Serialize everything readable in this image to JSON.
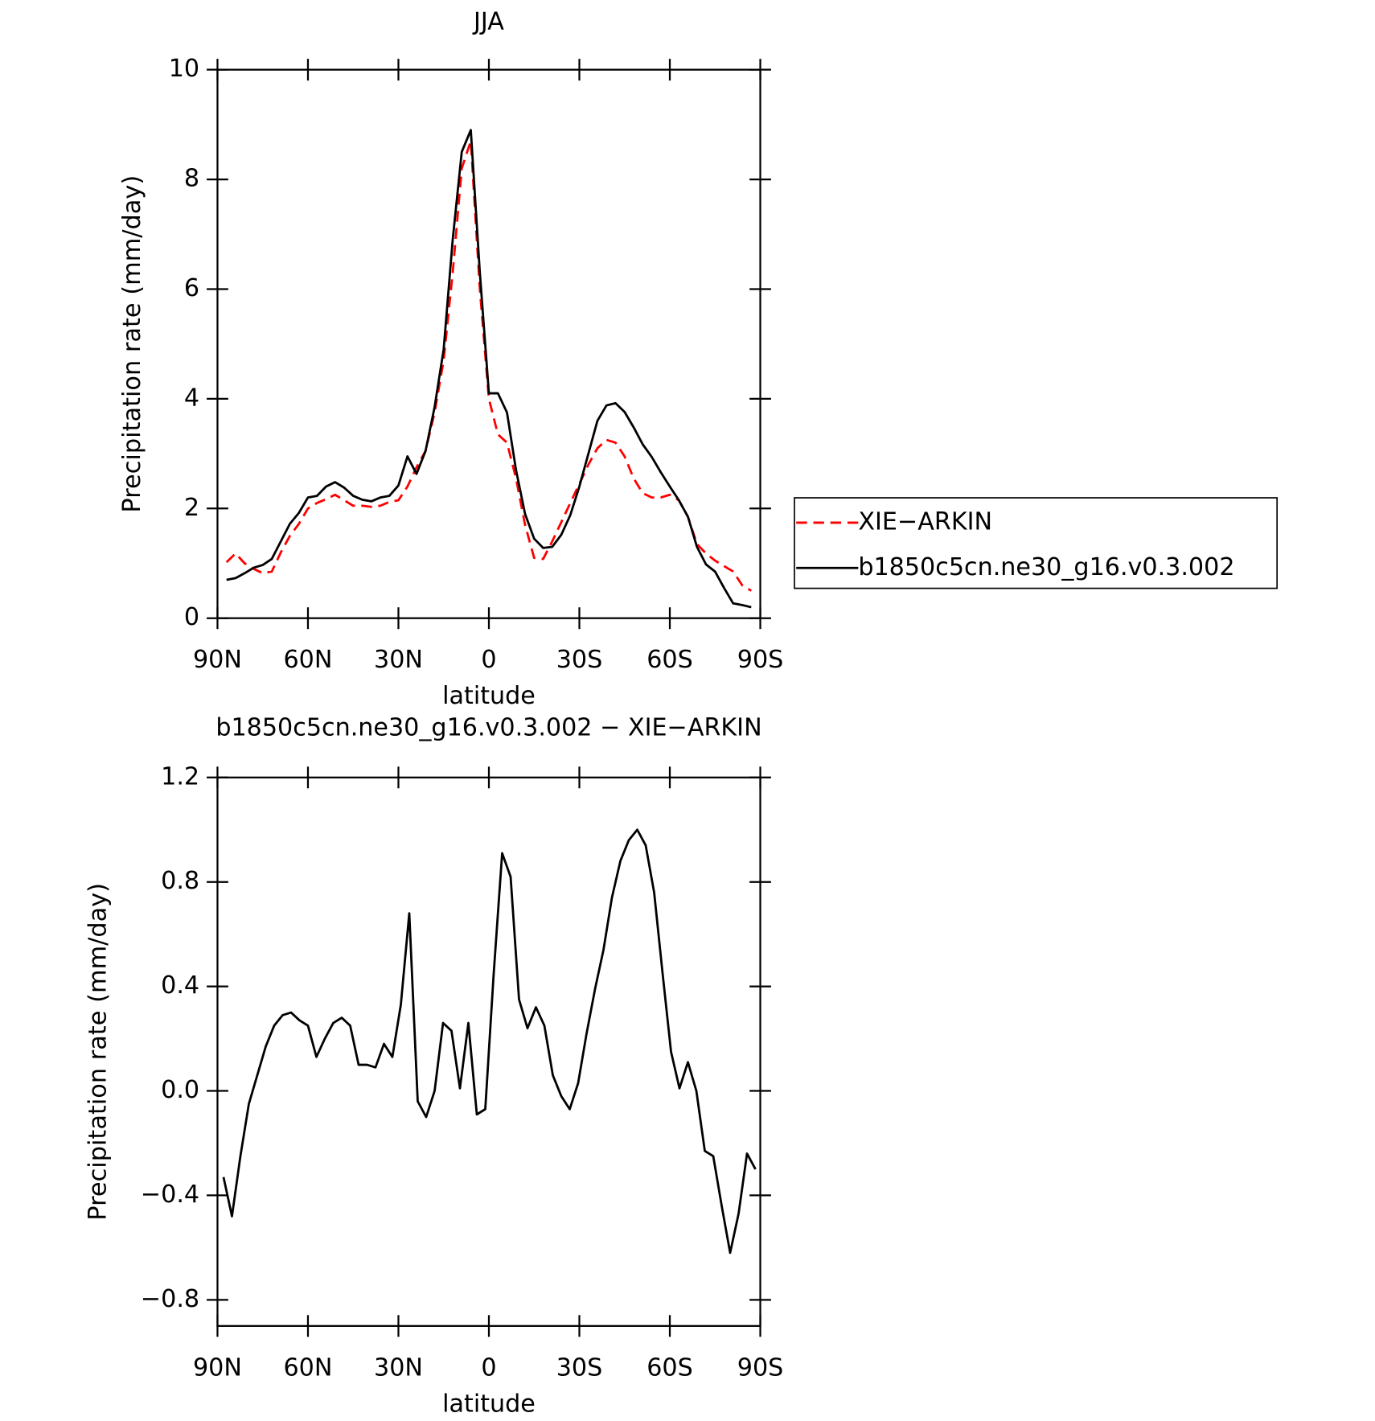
{
  "chart_data": [
    {
      "type": "line",
      "title": "JJA",
      "xlabel": "latitude",
      "ylabel": "Precipitation rate (mm/day)",
      "x": [
        87,
        84,
        81,
        78,
        75,
        72,
        69,
        66,
        63,
        60,
        57,
        54,
        51,
        48,
        45,
        42,
        39,
        36,
        33,
        30,
        27,
        24,
        21,
        18,
        15,
        12,
        9,
        6,
        3,
        0,
        -3,
        -6,
        -9,
        -12,
        -15,
        -18,
        -21,
        -24,
        -27,
        -30,
        -33,
        -36,
        -39,
        -42,
        -45,
        -48,
        -51,
        -54,
        -57,
        -60,
        -63,
        -66,
        -69,
        -72,
        -75,
        -78,
        -81,
        -84,
        -87
      ],
      "series": [
        {
          "name": "XIE−ARKIN",
          "color": "#ff0000",
          "line_style": "dashed",
          "values": [
            1.02,
            1.18,
            1.0,
            0.9,
            0.82,
            0.85,
            1.2,
            1.5,
            1.72,
            2.0,
            2.1,
            2.17,
            2.25,
            2.15,
            2.05,
            2.05,
            2.03,
            2.05,
            2.12,
            2.15,
            2.4,
            2.75,
            3.05,
            3.75,
            4.7,
            6.3,
            8.2,
            8.7,
            6.0,
            4.0,
            3.35,
            3.2,
            2.55,
            1.7,
            1.1,
            1.08,
            1.4,
            1.75,
            2.1,
            2.45,
            2.8,
            3.1,
            3.25,
            3.2,
            2.95,
            2.55,
            2.28,
            2.2,
            2.2,
            2.25,
            2.15,
            1.85,
            1.35,
            1.18,
            1.05,
            0.95,
            0.85,
            0.6,
            0.5
          ]
        },
        {
          "name": "b1850c5cn.ne30_g16.v0.3.002",
          "color": "#000000",
          "line_style": "solid",
          "values": [
            0.7,
            0.73,
            0.82,
            0.92,
            0.97,
            1.08,
            1.4,
            1.72,
            1.92,
            2.2,
            2.23,
            2.4,
            2.48,
            2.38,
            2.23,
            2.16,
            2.13,
            2.2,
            2.23,
            2.42,
            2.95,
            2.63,
            3.05,
            3.85,
            4.9,
            6.9,
            8.5,
            8.9,
            6.3,
            4.1,
            4.1,
            3.75,
            2.7,
            1.9,
            1.45,
            1.28,
            1.3,
            1.52,
            1.88,
            2.4,
            3.0,
            3.6,
            3.88,
            3.92,
            3.76,
            3.48,
            3.17,
            2.94,
            2.66,
            2.4,
            2.15,
            1.85,
            1.3,
            0.98,
            0.85,
            0.55,
            0.27,
            0.24,
            0.2
          ]
        }
      ],
      "xlim": [
        90,
        -90
      ],
      "xticks": [
        {
          "value": 90,
          "label": "90N"
        },
        {
          "value": 60,
          "label": "60N"
        },
        {
          "value": 30,
          "label": "30N"
        },
        0,
        {
          "value": -30,
          "label": "30S"
        },
        {
          "value": -60,
          "label": "60S"
        },
        {
          "value": -90,
          "label": "90S"
        }
      ],
      "ylim": [
        0,
        10
      ],
      "yticks": [
        0,
        2,
        4,
        6,
        8,
        10
      ],
      "legend": "right"
    },
    {
      "type": "line",
      "title": "b1850c5cn.ne30_g16.v0.3.002 − XIE−ARKIN",
      "xlabel": "latitude",
      "ylabel": "Precipitation rate (mm/day)",
      "x": [
        88.0,
        85.2,
        82.4,
        79.6,
        76.8,
        74.0,
        71.2,
        68.4,
        65.6,
        62.8,
        60.0,
        57.2,
        54.4,
        51.6,
        48.8,
        46.0,
        43.2,
        40.4,
        37.6,
        34.8,
        32.0,
        29.2,
        26.4,
        23.6,
        20.8,
        18.0,
        15.2,
        12.4,
        9.6,
        6.8,
        4.0,
        1.2,
        -1.6,
        -4.4,
        -7.2,
        -10.0,
        -12.8,
        -15.6,
        -18.4,
        -21.2,
        -24.0,
        -26.8,
        -29.6,
        -32.4,
        -35.2,
        -38.0,
        -40.8,
        -43.6,
        -46.4,
        -49.2,
        -52.0,
        -54.8,
        -57.6,
        -60.4,
        -63.2,
        -66.0,
        -68.8,
        -71.6,
        -74.4,
        -77.2,
        -80.0,
        -82.8,
        -85.6,
        -88.4
      ],
      "values": [
        -0.33,
        -0.48,
        -0.25,
        -0.05,
        0.06,
        0.17,
        0.25,
        0.29,
        0.3,
        0.27,
        0.25,
        0.13,
        0.2,
        0.26,
        0.28,
        0.25,
        0.1,
        0.1,
        0.09,
        0.18,
        0.13,
        0.33,
        0.68,
        -0.04,
        -0.1,
        0.0,
        0.26,
        0.23,
        0.01,
        0.26,
        -0.09,
        -0.07,
        0.45,
        0.91,
        0.82,
        0.35,
        0.24,
        0.32,
        0.25,
        0.06,
        -0.02,
        -0.07,
        0.03,
        0.22,
        0.39,
        0.54,
        0.74,
        0.88,
        0.96,
        1.0,
        0.94,
        0.76,
        0.45,
        0.15,
        0.01,
        0.11,
        0.0,
        -0.23,
        -0.25,
        -0.44,
        -0.62,
        -0.47,
        -0.24,
        -0.3
      ],
      "color": "#000000",
      "xlim": [
        90,
        -90
      ],
      "xticks": [
        {
          "value": 90,
          "label": "90N"
        },
        {
          "value": 60,
          "label": "60N"
        },
        {
          "value": 30,
          "label": "30N"
        },
        0,
        {
          "value": -30,
          "label": "30S"
        },
        {
          "value": -60,
          "label": "60S"
        },
        {
          "value": -90,
          "label": "90S"
        }
      ],
      "ylim": [
        -0.9,
        1.2
      ],
      "yticks": [
        {
          "value": -0.8,
          "label": "−0.8"
        },
        {
          "value": -0.4,
          "label": "−0.4"
        },
        {
          "value": 0,
          "label": "0.0"
        },
        {
          "value": 0.4,
          "label": "0.4"
        },
        {
          "value": 0.8,
          "label": "0.8"
        },
        {
          "value": 1.2,
          "label": "1.2"
        }
      ]
    }
  ]
}
